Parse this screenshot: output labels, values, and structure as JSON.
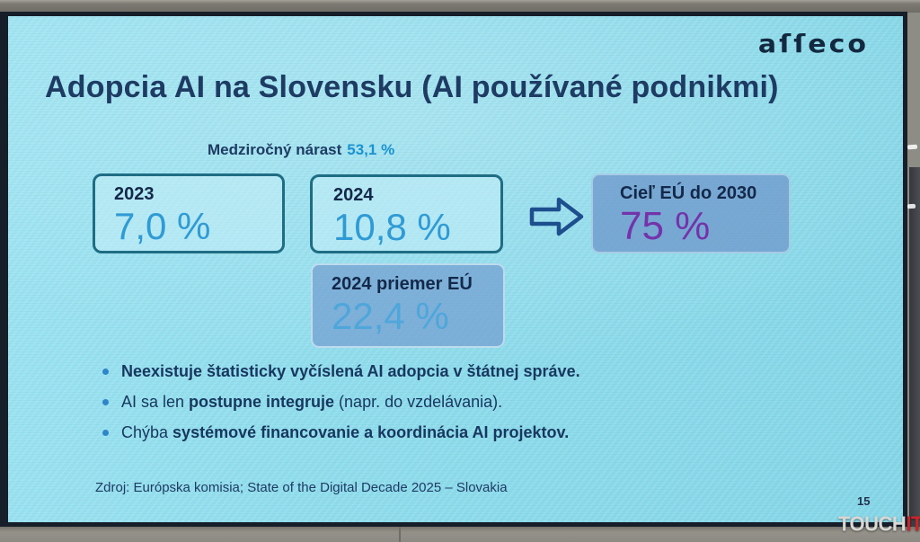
{
  "photo": {
    "watermark": {
      "touch_text": "TOUCH",
      "it_text": "IT"
    }
  },
  "slide": {
    "brand_logo_text": "aſſeco",
    "title": "Adopcia AI na Slovensku (AI používané podnikmi)",
    "growth": {
      "label": "Medziročný nárast",
      "value": "53,1 %"
    },
    "stat_boxes": [
      {
        "label": "2023",
        "value": "7,0 %"
      },
      {
        "label": "2024",
        "value": "10,8 %"
      },
      {
        "label": "2024 priemer EÚ",
        "value": "22,4 %"
      },
      {
        "label": "Cieľ EÚ do 2030",
        "value": "75 %"
      }
    ],
    "bullets": [
      {
        "segments": [
          {
            "text": "Neexistuje štatisticky vyčíslená AI adopcia v štátnej správe.",
            "bold": true
          }
        ]
      },
      {
        "segments": [
          {
            "text": "AI sa len ",
            "bold": false
          },
          {
            "text": "postupne integruje",
            "bold": true
          },
          {
            "text": " (napr. do vzdelávania).",
            "bold": false
          }
        ]
      },
      {
        "segments": [
          {
            "text": "Chýba ",
            "bold": false
          },
          {
            "text": "systémové financovanie a koordinácia AI projektov.",
            "bold": true
          }
        ]
      }
    ],
    "source": "Zdroj: Európska komisia; State of the Digital Decade 2025 – Slovakia",
    "page_number": "15",
    "colors": {
      "slide_bg": "#8edcec",
      "title_text": "#1d3b63",
      "value_blue": "#2f9ad4",
      "growth_blue": "#1b93d2",
      "eu_avg_blue": "#4fa6db",
      "eu_target_purple": "#7433aa",
      "box_border_teal": "#1f6d84",
      "eu_box_fill": "#709ccd",
      "bullet_dot": "#2e86c8",
      "bezel": "#161e29",
      "watermark_red": "#c9252b"
    }
  }
}
